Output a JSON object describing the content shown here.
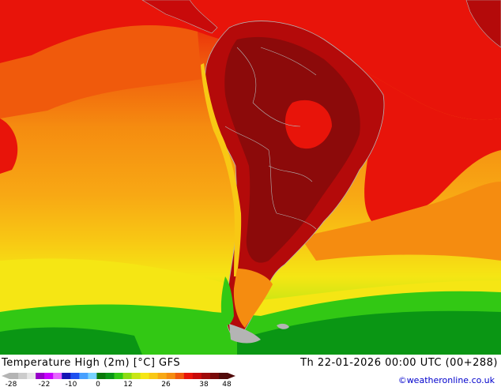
{
  "map": {
    "title": "Temperature High (2m) [°C] GFS",
    "valid_time": "Th 22-01-2026 00:00 UTC (00+288)",
    "credit": "©weatheronline.co.uk",
    "colors": {
      "ocean_red": "#e8140a",
      "ocean_orange_red": "#f05a0c",
      "ocean_orange": "#f58c10",
      "ocean_light_orange": "#f8a814",
      "yellow": "#f5e614",
      "yellow_green": "#c8e614",
      "green": "#32c814",
      "dark_green": "#0a9614",
      "land_dark_red": "#8c0a0a",
      "land_red": "#b40a0a",
      "border": "#b4b4b4"
    }
  },
  "legend": {
    "ticks": [
      "-28",
      "-22",
      "-10",
      "0",
      "12",
      "26",
      "38",
      "48"
    ],
    "colors": [
      "#b4b4b4",
      "#cccccc",
      "#e6e6e6",
      "#9600c8",
      "#c800ff",
      "#e664ff",
      "#1414b4",
      "#1e50f0",
      "#46a0ff",
      "#78d2ff",
      "#0a780a",
      "#0a9614",
      "#32c814",
      "#8cdc14",
      "#c8e614",
      "#f5e614",
      "#f8c814",
      "#f8a814",
      "#f58c10",
      "#f05a0c",
      "#e8140a",
      "#c80a0a",
      "#a00a0a",
      "#780a0a",
      "#500a0a"
    ]
  }
}
